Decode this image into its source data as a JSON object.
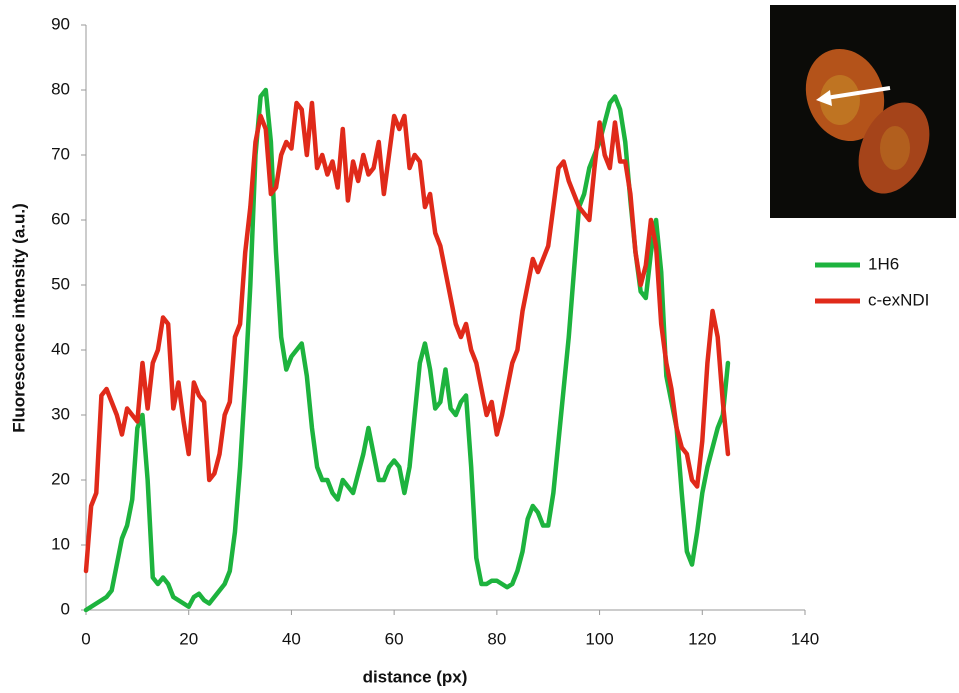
{
  "chart_data": {
    "type": "line",
    "x_label": "distance (px)",
    "y_label": "Fluorescence intensity (a.u.)",
    "x": [
      0,
      1,
      2,
      3,
      4,
      5,
      6,
      7,
      8,
      9,
      10,
      11,
      12,
      13,
      14,
      15,
      16,
      17,
      18,
      19,
      20,
      21,
      22,
      23,
      24,
      25,
      26,
      27,
      28,
      29,
      30,
      31,
      32,
      33,
      34,
      35,
      36,
      37,
      38,
      39,
      40,
      41,
      42,
      43,
      44,
      45,
      46,
      47,
      48,
      49,
      50,
      51,
      52,
      53,
      54,
      55,
      56,
      57,
      58,
      59,
      60,
      61,
      62,
      63,
      64,
      65,
      66,
      67,
      68,
      69,
      70,
      71,
      72,
      73,
      74,
      75,
      76,
      77,
      78,
      79,
      80,
      81,
      82,
      83,
      84,
      85,
      86,
      87,
      88,
      89,
      90,
      91,
      92,
      93,
      94,
      95,
      96,
      97,
      98,
      99,
      100,
      101,
      102,
      103,
      104,
      105,
      106,
      107,
      108,
      109,
      110,
      111,
      112,
      113,
      114,
      115,
      116,
      117,
      118,
      119,
      120,
      121,
      122,
      123,
      124,
      125
    ],
    "series": [
      {
        "name": "1H6",
        "color": "#1db33e",
        "values": [
          0,
          0.5,
          1,
          1.5,
          2,
          3,
          7,
          11,
          13,
          17,
          28,
          30,
          20,
          5,
          4,
          5,
          4,
          2,
          1.5,
          1,
          0.5,
          2,
          2.5,
          1.5,
          1,
          2,
          3,
          4,
          6,
          12,
          22,
          35,
          50,
          70,
          79,
          80,
          72,
          55,
          42,
          37,
          39,
          40,
          41,
          36,
          28,
          22,
          20,
          20,
          18,
          17,
          20,
          19,
          18,
          21,
          24,
          28,
          24,
          20,
          20,
          22,
          23,
          22,
          18,
          22,
          30,
          38,
          41,
          37,
          31,
          32,
          37,
          31,
          30,
          32,
          33,
          22,
          8,
          4,
          4,
          4.5,
          4.5,
          4,
          3.5,
          4,
          6,
          9,
          14,
          16,
          15,
          13,
          13,
          18,
          26,
          34,
          42,
          52,
          62,
          64,
          68,
          70,
          72,
          75,
          78,
          79,
          77,
          72,
          63,
          55,
          49,
          48,
          55,
          60,
          52,
          36,
          32,
          28,
          18,
          9,
          7,
          12,
          18,
          22,
          25,
          28,
          30,
          38
        ]
      },
      {
        "name": "c-exNDI",
        "color": "#e02a1a",
        "values": [
          6,
          16,
          18,
          33,
          34,
          32,
          30,
          27,
          31,
          30,
          29,
          38,
          31,
          38,
          40,
          45,
          44,
          31,
          35,
          29,
          24,
          35,
          33,
          32,
          20,
          21,
          24,
          30,
          32,
          42,
          44,
          55,
          62,
          72,
          76,
          74,
          64,
          65,
          70,
          72,
          71,
          78,
          77,
          70,
          78,
          68,
          70,
          67,
          69,
          65,
          74,
          63,
          69,
          66,
          70,
          67,
          68,
          72,
          64,
          70,
          76,
          74,
          76,
          68,
          70,
          69,
          62,
          64,
          58,
          56,
          52,
          48,
          44,
          42,
          44,
          40,
          38,
          34,
          30,
          32,
          27,
          30,
          34,
          38,
          40,
          46,
          50,
          54,
          52,
          54,
          56,
          62,
          68,
          69,
          66,
          64,
          62,
          61,
          60,
          68,
          75,
          70,
          68,
          75,
          69,
          69,
          64,
          55,
          50,
          53,
          60,
          56,
          44,
          38,
          34,
          28,
          25,
          24,
          20,
          19,
          26,
          38,
          46,
          42,
          32,
          24
        ]
      }
    ],
    "xlim": [
      0,
      140
    ],
    "xticks": [
      0,
      20,
      40,
      60,
      80,
      100,
      120,
      140
    ],
    "ylim": [
      0,
      90
    ],
    "yticks": [
      0,
      10,
      20,
      30,
      40,
      50,
      60,
      70,
      80,
      90
    ],
    "legend": "right"
  }
}
